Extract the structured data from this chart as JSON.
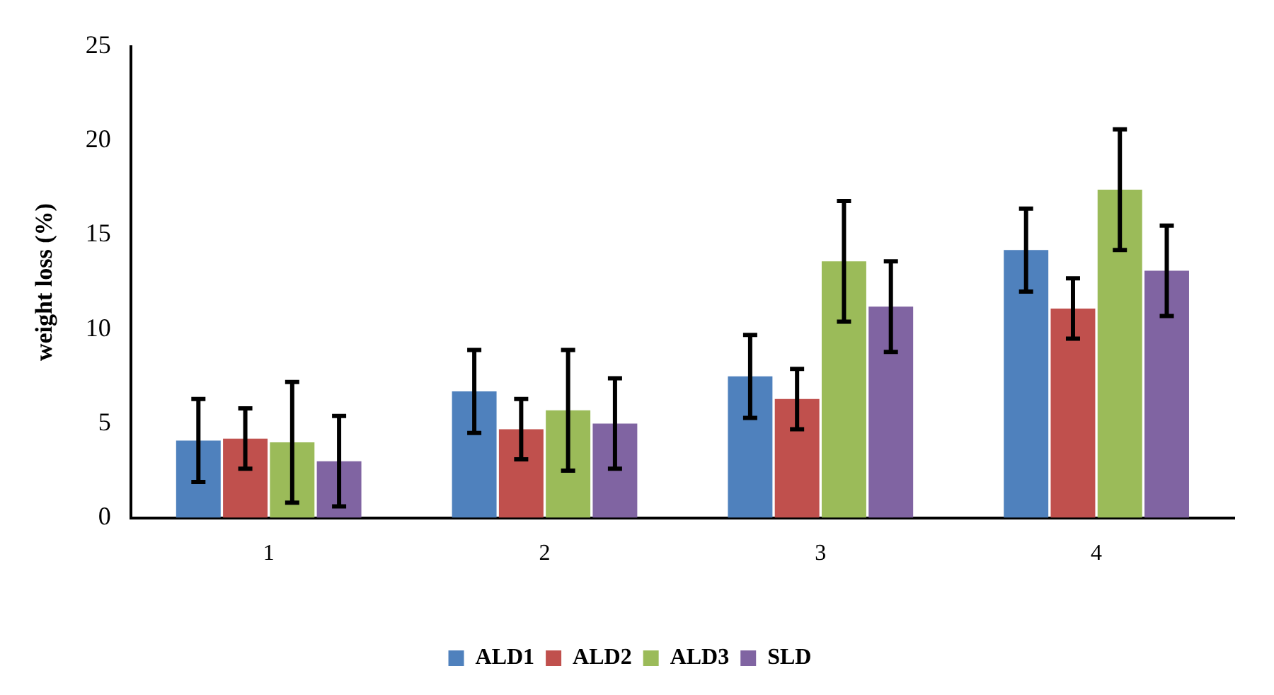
{
  "chart_data": {
    "type": "bar",
    "ylabel": "weight loss (%)",
    "categories": [
      "1",
      "2",
      "3",
      "4"
    ],
    "series": [
      {
        "name": "ALD1",
        "color": "#4f81bd",
        "values": [
          4.1,
          6.7,
          7.5,
          14.2
        ],
        "errors": [
          2.2,
          2.2,
          2.2,
          2.2
        ]
      },
      {
        "name": "ALD2",
        "color": "#c0504d",
        "values": [
          4.2,
          4.7,
          6.3,
          11.1
        ],
        "errors": [
          1.6,
          1.6,
          1.6,
          1.6
        ]
      },
      {
        "name": "ALD3",
        "color": "#9bbb59",
        "values": [
          4.0,
          5.7,
          13.6,
          17.4
        ],
        "errors": [
          3.2,
          3.2,
          3.2,
          3.2
        ]
      },
      {
        "name": "SLD",
        "color": "#8064a2",
        "values": [
          3.0,
          5.0,
          11.2,
          13.1
        ],
        "errors": [
          2.4,
          2.4,
          2.4,
          2.4
        ]
      }
    ],
    "ylim": [
      0,
      25
    ],
    "yticks": [
      0,
      5,
      10,
      15,
      20,
      25
    ],
    "grid": false,
    "legend": "bottom"
  }
}
